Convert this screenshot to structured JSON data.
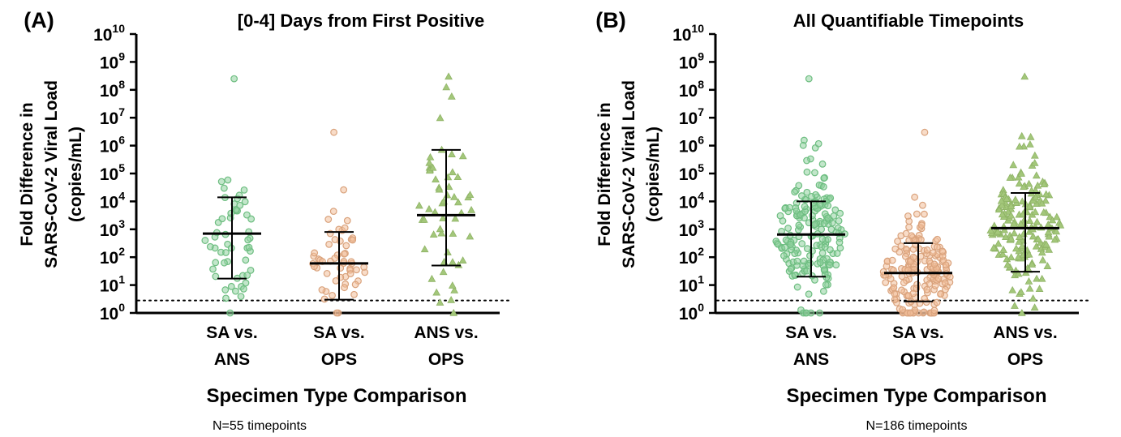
{
  "chart_data": [
    {
      "type": "scatter",
      "panel_label": "(A)",
      "title": "[0-4] Days from First Positive",
      "xlabel": "Specimen Type Comparison",
      "ylabel_line1": "Fold Difference in",
      "ylabel_line2": "SARS-CoV-2 Viral Load",
      "ylabel_line3": "(copies/mL)",
      "y_scale": "log10",
      "ylim": [
        1,
        10000000000
      ],
      "y_ticks": [
        {
          "base": "10",
          "exp": "0"
        },
        {
          "base": "10",
          "exp": "1"
        },
        {
          "base": "10",
          "exp": "2"
        },
        {
          "base": "10",
          "exp": "3"
        },
        {
          "base": "10",
          "exp": "4"
        },
        {
          "base": "10",
          "exp": "5"
        },
        {
          "base": "10",
          "exp": "6"
        },
        {
          "base": "10",
          "exp": "7"
        },
        {
          "base": "10",
          "exp": "8"
        },
        {
          "base": "10",
          "exp": "9"
        },
        {
          "base": "10",
          "exp": "10"
        }
      ],
      "categories": [
        {
          "line1": "SA vs.",
          "line2": "ANS"
        },
        {
          "line1": "SA vs.",
          "line2": "OPS"
        },
        {
          "line1": "ANS vs.",
          "line2": "OPS"
        }
      ],
      "threshold_line": 2.8,
      "note": "N=55 timepoints",
      "series": [
        {
          "marker": "circle",
          "color": "#8fd19e",
          "median": 700,
          "lower": 17,
          "upper": 14000,
          "max": 250000000,
          "point_count": 55
        },
        {
          "marker": "circle",
          "color": "#f2c09a",
          "median": 60,
          "lower": 3,
          "upper": 800,
          "max": 3000000,
          "point_count": 55
        },
        {
          "marker": "triangle",
          "color": "#a3c77a",
          "median": 3200,
          "lower": 50,
          "upper": 700000,
          "max": 300000000,
          "point_count": 55
        }
      ]
    },
    {
      "type": "scatter",
      "panel_label": "(B)",
      "title": "All Quantifiable Timepoints",
      "xlabel": "Specimen Type Comparison",
      "ylabel_line1": "Fold Difference in",
      "ylabel_line2": "SARS-CoV-2 Viral Load",
      "ylabel_line3": "(copies/mL)",
      "y_scale": "log10",
      "ylim": [
        1,
        10000000000
      ],
      "y_ticks": [
        {
          "base": "10",
          "exp": "0"
        },
        {
          "base": "10",
          "exp": "1"
        },
        {
          "base": "10",
          "exp": "2"
        },
        {
          "base": "10",
          "exp": "3"
        },
        {
          "base": "10",
          "exp": "4"
        },
        {
          "base": "10",
          "exp": "5"
        },
        {
          "base": "10",
          "exp": "6"
        },
        {
          "base": "10",
          "exp": "7"
        },
        {
          "base": "10",
          "exp": "8"
        },
        {
          "base": "10",
          "exp": "9"
        },
        {
          "base": "10",
          "exp": "10"
        }
      ],
      "categories": [
        {
          "line1": "SA vs.",
          "line2": "ANS"
        },
        {
          "line1": "SA vs.",
          "line2": "OPS"
        },
        {
          "line1": "ANS vs.",
          "line2": "OPS"
        }
      ],
      "threshold_line": 2.8,
      "note": "N=186 timepoints",
      "series": [
        {
          "marker": "circle",
          "color": "#8fd19e",
          "median": 650,
          "lower": 20,
          "upper": 10000,
          "max": 250000000,
          "point_count": 186
        },
        {
          "marker": "circle",
          "color": "#f2c09a",
          "median": 27,
          "lower": 2.6,
          "upper": 320,
          "max": 3000000,
          "point_count": 186
        },
        {
          "marker": "triangle",
          "color": "#a3c77a",
          "median": 1100,
          "lower": 30,
          "upper": 20000,
          "max": 300000000,
          "point_count": 186
        }
      ]
    }
  ]
}
